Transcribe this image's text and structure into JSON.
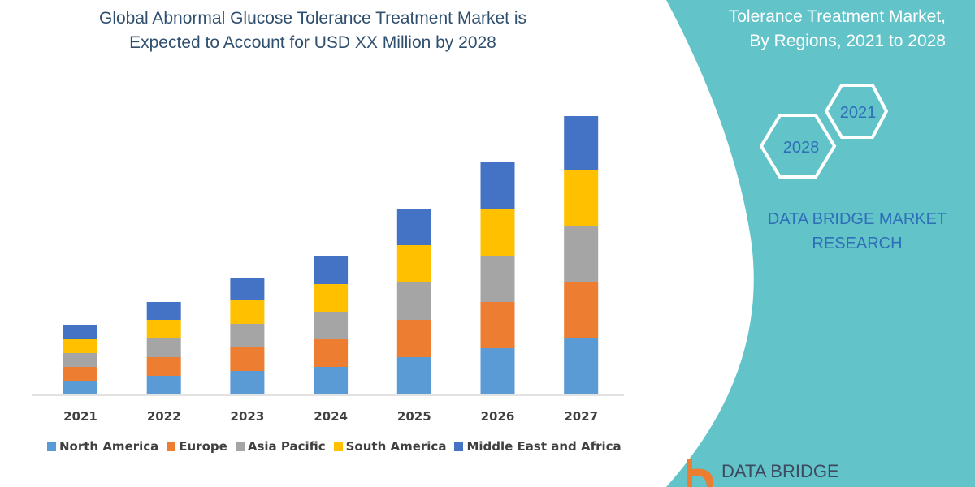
{
  "header": {
    "title_line1": "Global Abnormal Glucose Tolerance Treatment Market is",
    "title_line2": "Expected to Account for USD XX Million by 2028"
  },
  "side_panel": {
    "title_line1": "Tolerance Treatment Market,",
    "title_line2": "By Regions, 2021 to 2028",
    "hex_years": [
      "2021",
      "2028"
    ],
    "brand_line1": "DATA BRIDGE MARKET",
    "brand_line2": "RESEARCH",
    "logo_text": "DATA BRIDGE",
    "panel_color": "#62c3c9"
  },
  "chart_data": {
    "type": "bar",
    "stacked": true,
    "categories": [
      "2021",
      "2022",
      "2023",
      "2024",
      "2025",
      "2026",
      "2027"
    ],
    "series": [
      {
        "name": "North America",
        "color": "#5b9bd5",
        "values": [
          17,
          23,
          29,
          34,
          46,
          57,
          69
        ]
      },
      {
        "name": "Europe",
        "color": "#ed7d31",
        "values": [
          17,
          23,
          29,
          34,
          46,
          57,
          69
        ]
      },
      {
        "name": "Asia Pacific",
        "color": "#a5a5a5",
        "values": [
          17,
          23,
          29,
          34,
          46,
          57,
          69
        ]
      },
      {
        "name": "South America",
        "color": "#ffc000",
        "values": [
          17,
          23,
          29,
          34,
          46,
          57,
          69
        ]
      },
      {
        "name": "Middle East and Africa",
        "color": "#4472c4",
        "values": [
          18,
          22,
          27,
          35,
          45,
          58,
          67
        ]
      }
    ],
    "ylim": [
      0,
      350
    ],
    "y_axis_shown": false,
    "grid": false,
    "legend_placement": "bottom"
  }
}
